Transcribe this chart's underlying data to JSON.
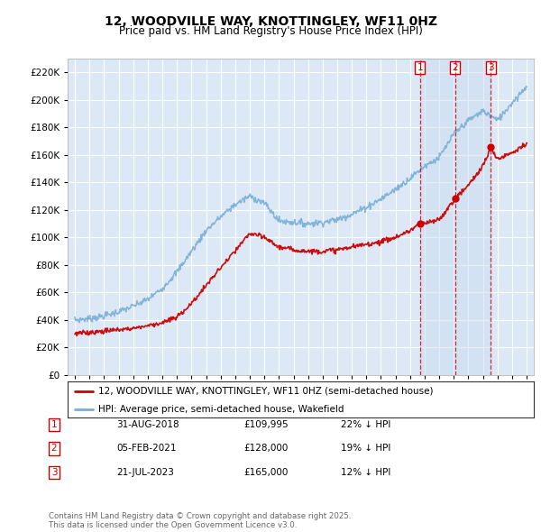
{
  "title": "12, WOODVILLE WAY, KNOTTINGLEY, WF11 0HZ",
  "subtitle": "Price paid vs. HM Land Registry's House Price Index (HPI)",
  "ylim": [
    0,
    230000
  ],
  "ytick_step": 20000,
  "background_color": "#ffffff",
  "plot_bg_color": "#dce8f5",
  "grid_color": "#ffffff",
  "hpi_color": "#7aaed6",
  "price_color": "#cc0000",
  "shade_color": "#ccddf0",
  "transactions": [
    {
      "label": "1",
      "date": "31-AUG-2018",
      "price": 109995,
      "pct": "22%",
      "x_year": 2018.67
    },
    {
      "label": "2",
      "date": "05-FEB-2021",
      "price": 128000,
      "pct": "19%",
      "x_year": 2021.09
    },
    {
      "label": "3",
      "date": "21-JUL-2023",
      "price": 165000,
      "pct": "12%",
      "x_year": 2023.54
    }
  ],
  "legend_label_price": "12, WOODVILLE WAY, KNOTTINGLEY, WF11 0HZ (semi-detached house)",
  "legend_label_hpi": "HPI: Average price, semi-detached house, Wakefield",
  "footer": "Contains HM Land Registry data © Crown copyright and database right 2025.\nThis data is licensed under the Open Government Licence v3.0.",
  "xmin": 1994.5,
  "xmax": 2026.5,
  "hpi_anchors_x": [
    1995,
    1996,
    1997,
    1998,
    1999,
    2000,
    2001,
    2002,
    2003,
    2004,
    2005,
    2006,
    2007,
    2008,
    2009,
    2010,
    2011,
    2012,
    2013,
    2014,
    2015,
    2016,
    2017,
    2018,
    2019,
    2020,
    2021,
    2022,
    2023,
    2024,
    2025,
    2026
  ],
  "hpi_anchors_y": [
    40000,
    41000,
    43000,
    46000,
    50000,
    55000,
    63000,
    75000,
    90000,
    105000,
    115000,
    124000,
    130000,
    125000,
    112000,
    111000,
    110000,
    111000,
    113000,
    117000,
    122000,
    128000,
    135000,
    143000,
    152000,
    158000,
    175000,
    185000,
    192000,
    185000,
    198000,
    210000
  ],
  "price_anchors_x": [
    1995,
    1996,
    1997,
    1998,
    1999,
    2000,
    2001,
    2002,
    2003,
    2004,
    2005,
    2006,
    2007,
    2008,
    2009,
    2010,
    2011,
    2012,
    2013,
    2014,
    2015,
    2016,
    2017,
    2018,
    2018.67,
    2019,
    2020,
    2021.09,
    2022,
    2023,
    2023.54,
    2024,
    2025,
    2026
  ],
  "price_anchors_y": [
    30000,
    31000,
    32000,
    33000,
    34000,
    36000,
    38000,
    42000,
    52000,
    65000,
    78000,
    90000,
    103000,
    100000,
    93000,
    91000,
    90000,
    90000,
    91000,
    93000,
    95000,
    97000,
    100000,
    105000,
    109995,
    110000,
    113000,
    128000,
    138000,
    152000,
    165000,
    157000,
    162000,
    168000
  ]
}
